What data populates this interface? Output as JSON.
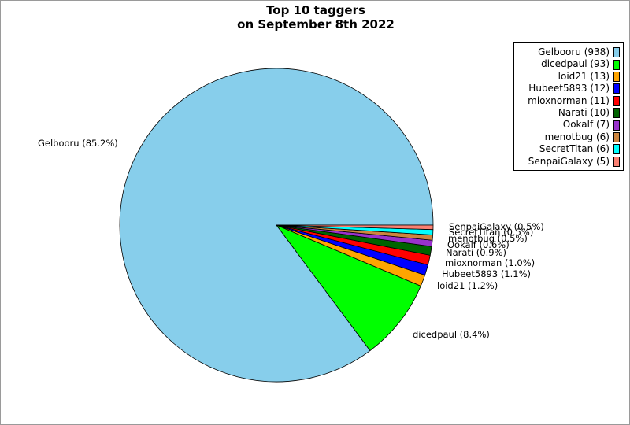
{
  "chart_data": {
    "type": "pie",
    "title": [
      "Top 10 taggers",
      "on September 8th 2022"
    ],
    "slices": [
      {
        "name": "Gelbooru",
        "value": 938,
        "percent": "85.2%",
        "color": "#87ceeb"
      },
      {
        "name": "dicedpaul",
        "value": 93,
        "percent": "8.4%",
        "color": "#00ff00"
      },
      {
        "name": "loid21",
        "value": 13,
        "percent": "1.2%",
        "color": "#ffa500"
      },
      {
        "name": "Hubeet5893",
        "value": 12,
        "percent": "1.1%",
        "color": "#0000ff"
      },
      {
        "name": "mioxnorman",
        "value": 11,
        "percent": "1.0%",
        "color": "#ff0000"
      },
      {
        "name": "Narati",
        "value": 10,
        "percent": "0.9%",
        "color": "#006400"
      },
      {
        "name": "Ookalf",
        "value": 7,
        "percent": "0.6%",
        "color": "#9932cc"
      },
      {
        "name": "menotbug",
        "value": 6,
        "percent": "0.5%",
        "color": "#cd853f"
      },
      {
        "name": "SecretTitan",
        "value": 6,
        "percent": "0.5%",
        "color": "#00ffff"
      },
      {
        "name": "SenpaiGalaxy",
        "value": 5,
        "percent": "0.5%",
        "color": "#fa8072"
      }
    ],
    "legend_position": "top-right"
  }
}
